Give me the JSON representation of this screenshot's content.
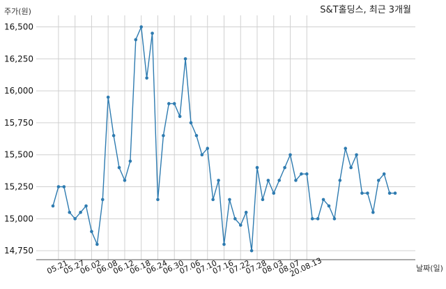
{
  "chart_data": {
    "type": "line",
    "title": "S&T홀딩스, 최근 3개월",
    "ylabel": "주가(원)",
    "xlabel": "날짜(일)",
    "ylim": [
      14680,
      16590
    ],
    "yticks": [
      14750,
      15000,
      15250,
      15500,
      15750,
      16000,
      16250,
      16500
    ],
    "ytick_labels": [
      "14,750",
      "15,000",
      "15,250",
      "15,500",
      "15,750",
      "16,000",
      "16,250",
      "16,500"
    ],
    "xticks": [
      "05.21",
      "05.27",
      "06.02",
      "06.08",
      "06.12",
      "06.18",
      "06.24",
      "06.30",
      "07.06",
      "07.10",
      "07.16",
      "07.22",
      "07.28",
      "08.03",
      "08.07",
      "20.08.13"
    ],
    "grid": true,
    "line_color": "#2e7bb0",
    "series": [
      {
        "values": [
          15100,
          15250,
          15250,
          15050,
          15000,
          15050,
          15100,
          14900,
          14800,
          15150,
          15950,
          15650,
          15400,
          15300,
          15450,
          16400,
          16500,
          16100,
          16450,
          15150,
          15650,
          15900,
          15900,
          15800,
          16250,
          15750,
          15650,
          15500,
          15550,
          15150,
          15300,
          14800,
          15150,
          15000,
          14950,
          15050,
          14750,
          15400,
          15150,
          15300,
          15200,
          15300,
          15400,
          15500,
          15300,
          15350,
          15350,
          15000,
          15000,
          15150,
          15100,
          15000,
          15300,
          15550,
          15400,
          15500,
          15200,
          15200,
          15050,
          15300,
          15350,
          15200,
          15200
        ]
      }
    ]
  }
}
